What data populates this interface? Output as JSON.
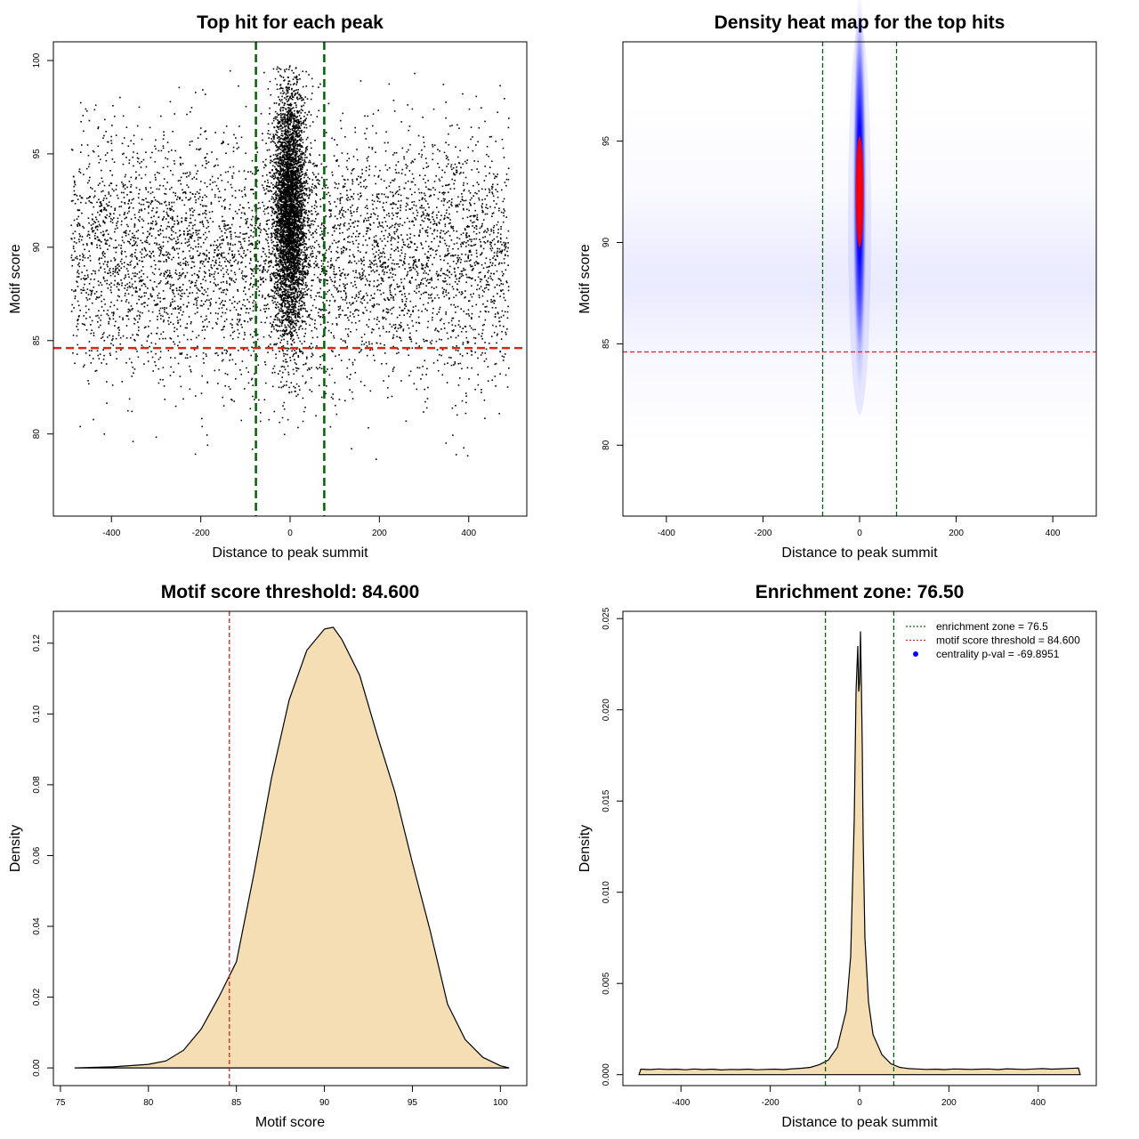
{
  "colors": {
    "enrichment_line": "#006400",
    "threshold_line": "#dd2222",
    "density_fill": "#f5deb3",
    "heat_low": "#ffffff",
    "heat_mid": "#0000ff",
    "heat_high": "#ff0000",
    "legend_point": "#0000ff"
  },
  "chart_data": [
    {
      "type": "scatter",
      "title": "Top hit for each peak",
      "xlabel": "Distance to peak summit",
      "ylabel": "Motif score",
      "xlim": [
        -530,
        530
      ],
      "ylim": [
        75.6,
        101
      ],
      "xticks": [
        -400,
        -200,
        0,
        200,
        400
      ],
      "yticks": [
        80,
        85,
        90,
        95,
        100
      ],
      "x_range_of_hits": [
        -490,
        490
      ],
      "background_cloud": {
        "score_mean": 89.5,
        "score_sd": 3.3,
        "score_min": 78.2,
        "score_max": 99.5
      },
      "central_cloud": {
        "distance_sd": 18,
        "score_mean": 92,
        "score_sd": 3.4,
        "score_min": 79.5,
        "score_max": 99.8
      },
      "vlines": [
        -76.5,
        76.5
      ],
      "hline": 84.6
    },
    {
      "type": "heatmap",
      "title": "Density heat map for the top hits",
      "xlabel": "Distance to peak summit",
      "ylabel": "Motif score",
      "xlim": [
        -490,
        490
      ],
      "ylim": [
        76.5,
        99.9
      ],
      "xticks": [
        -400,
        -200,
        0,
        200,
        400
      ],
      "yticks": [
        80,
        85,
        90,
        95
      ],
      "peak": {
        "x": 0,
        "y": 92.5
      },
      "vlines": [
        -76.5,
        76.5
      ],
      "hline": 84.6
    },
    {
      "type": "area",
      "title": "Motif score threshold: 84.600",
      "xlabel": "Motif score",
      "ylabel": "Density",
      "xlim": [
        74.6,
        101.5
      ],
      "ylim": [
        -0.005,
        0.129
      ],
      "xticks": [
        75,
        80,
        85,
        90,
        95,
        100
      ],
      "yticks": [
        0.0,
        0.02,
        0.04,
        0.06,
        0.08,
        0.1,
        0.12
      ],
      "ytick_labels": [
        "0.00",
        "0.02",
        "0.04",
        "0.06",
        "0.08",
        "0.10",
        "0.12"
      ],
      "x": [
        75.8,
        78,
        80,
        81,
        82,
        83,
        84,
        84.6,
        85,
        86,
        87,
        88,
        89,
        90,
        90.5,
        91,
        92,
        93,
        94,
        95,
        96,
        97,
        98,
        99,
        100,
        100.5
      ],
      "y": [
        0.0,
        0.0003,
        0.001,
        0.002,
        0.005,
        0.011,
        0.02,
        0.026,
        0.03,
        0.055,
        0.082,
        0.104,
        0.118,
        0.124,
        0.1245,
        0.121,
        0.111,
        0.094,
        0.078,
        0.058,
        0.039,
        0.018,
        0.008,
        0.003,
        0.0006,
        0.0
      ],
      "vline": 84.6
    },
    {
      "type": "area",
      "title": "Enrichment zone: 76.50",
      "xlabel": "Distance to peak summit",
      "ylabel": "Density",
      "xlim": [
        -530,
        530
      ],
      "ylim": [
        -0.0006,
        0.0254
      ],
      "xticks": [
        -400,
        -200,
        0,
        200,
        400
      ],
      "yticks": [
        0.0,
        0.005,
        0.01,
        0.015,
        0.02,
        0.025
      ],
      "ytick_labels": [
        "0.000",
        "0.005",
        "0.010",
        "0.015",
        "0.020",
        "0.025"
      ],
      "x": [
        -494,
        -490,
        -470,
        -450,
        -430,
        -410,
        -390,
        -370,
        -350,
        -330,
        -310,
        -290,
        -270,
        -250,
        -230,
        -210,
        -190,
        -170,
        -150,
        -130,
        -110,
        -90,
        -70,
        -50,
        -30,
        -20,
        -12,
        -8,
        -4,
        -2,
        0,
        2,
        4,
        6,
        8,
        12,
        20,
        30,
        50,
        70,
        90,
        110,
        130,
        150,
        170,
        190,
        210,
        230,
        250,
        270,
        290,
        310,
        330,
        350,
        370,
        390,
        410,
        430,
        450,
        470,
        490,
        494
      ],
      "y": [
        0.0,
        0.0003,
        0.00028,
        0.00031,
        0.00029,
        0.0003,
        0.00027,
        0.00031,
        0.00028,
        0.0003,
        0.00026,
        0.00029,
        0.00028,
        0.0003,
        0.00027,
        0.00029,
        0.0003,
        0.00028,
        0.00032,
        0.00035,
        0.0004,
        0.00055,
        0.0008,
        0.0015,
        0.0035,
        0.0065,
        0.014,
        0.021,
        0.0235,
        0.021,
        0.0215,
        0.0243,
        0.0215,
        0.018,
        0.013,
        0.0075,
        0.004,
        0.0022,
        0.0011,
        0.0006,
        0.0004,
        0.00033,
        0.00031,
        0.00029,
        0.0003,
        0.00028,
        0.00031,
        0.0003,
        0.00029,
        0.0003,
        0.00031,
        0.00028,
        0.00032,
        0.0003,
        0.00029,
        0.00031,
        0.00033,
        0.0003,
        0.00032,
        0.00034,
        0.00036,
        0.0
      ],
      "vlines": [
        -76.5,
        76.5
      ],
      "legend": {
        "position": "top-right",
        "entries": [
          {
            "label": "enrichment zone = 76.5",
            "marker": "dotted-line",
            "color": "#006400"
          },
          {
            "label": "motif score threshold = 84.600",
            "marker": "dotted-line",
            "color": "#dd2222"
          },
          {
            "label": "centrality p-val = -69.8951",
            "marker": "point",
            "color": "#0000ff"
          }
        ]
      }
    }
  ]
}
